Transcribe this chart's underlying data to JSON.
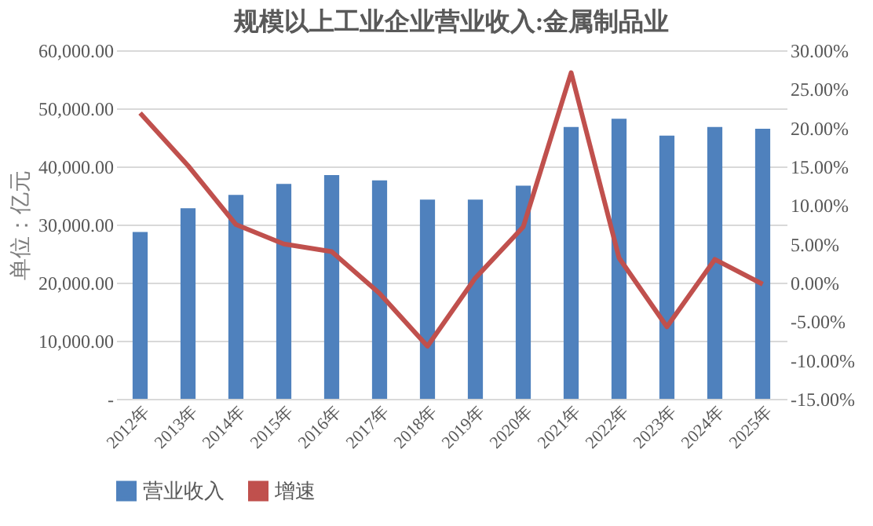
{
  "chart_data": {
    "type": "bar",
    "title": "规模以上工业企业营业收入:金属制品业",
    "ylabel": "单位：亿元",
    "categories": [
      "2012年",
      "2013年",
      "2014年",
      "2015年",
      "2016年",
      "2017年",
      "2018年",
      "2019年",
      "2020年",
      "2021年",
      "2022年",
      "2023年",
      "2024年",
      "2025年"
    ],
    "series": [
      {
        "name": "营业收入",
        "color": "#4f81bd",
        "values": [
          28700,
          32800,
          35100,
          37000,
          38500,
          37600,
          34300,
          34300,
          36700,
          46800,
          48200,
          45300,
          46800,
          46500
        ]
      },
      {
        "name": "增速",
        "type": "line",
        "axis": "y2",
        "color": "#c0504d",
        "values": [
          21.9,
          15.1,
          7.5,
          5.0,
          4.0,
          -1.4,
          -8.2,
          0.6,
          7.2,
          27.1,
          3.2,
          -5.7,
          3.0,
          -0.2
        ]
      }
    ],
    "ylim": [
      0,
      60000
    ],
    "yticks": [
      {
        "value": 0,
        "label": "-"
      },
      {
        "value": 10000,
        "label": "10,000.00"
      },
      {
        "value": 20000,
        "label": "20,000.00"
      },
      {
        "value": 30000,
        "label": "30,000.00"
      },
      {
        "value": 40000,
        "label": "40,000.00"
      },
      {
        "value": 50000,
        "label": "50,000.00"
      },
      {
        "value": 60000,
        "label": "60,000.00"
      }
    ],
    "y2lim": [
      -15,
      30
    ],
    "y2ticks": [
      {
        "value": -15,
        "label": "-15.00%"
      },
      {
        "value": -10,
        "label": "-10.00%"
      },
      {
        "value": -5,
        "label": "-5.00%"
      },
      {
        "value": 0,
        "label": "0.00%"
      },
      {
        "value": 5,
        "label": "5.00%"
      },
      {
        "value": 10,
        "label": "10.00%"
      },
      {
        "value": 15,
        "label": "15.00%"
      },
      {
        "value": 20,
        "label": "20.00%"
      },
      {
        "value": 25,
        "label": "25.00%"
      },
      {
        "value": 30,
        "label": "30.00%"
      }
    ],
    "grid": "y",
    "legend": "bottom",
    "marker": "none",
    "line_style": "solid"
  }
}
